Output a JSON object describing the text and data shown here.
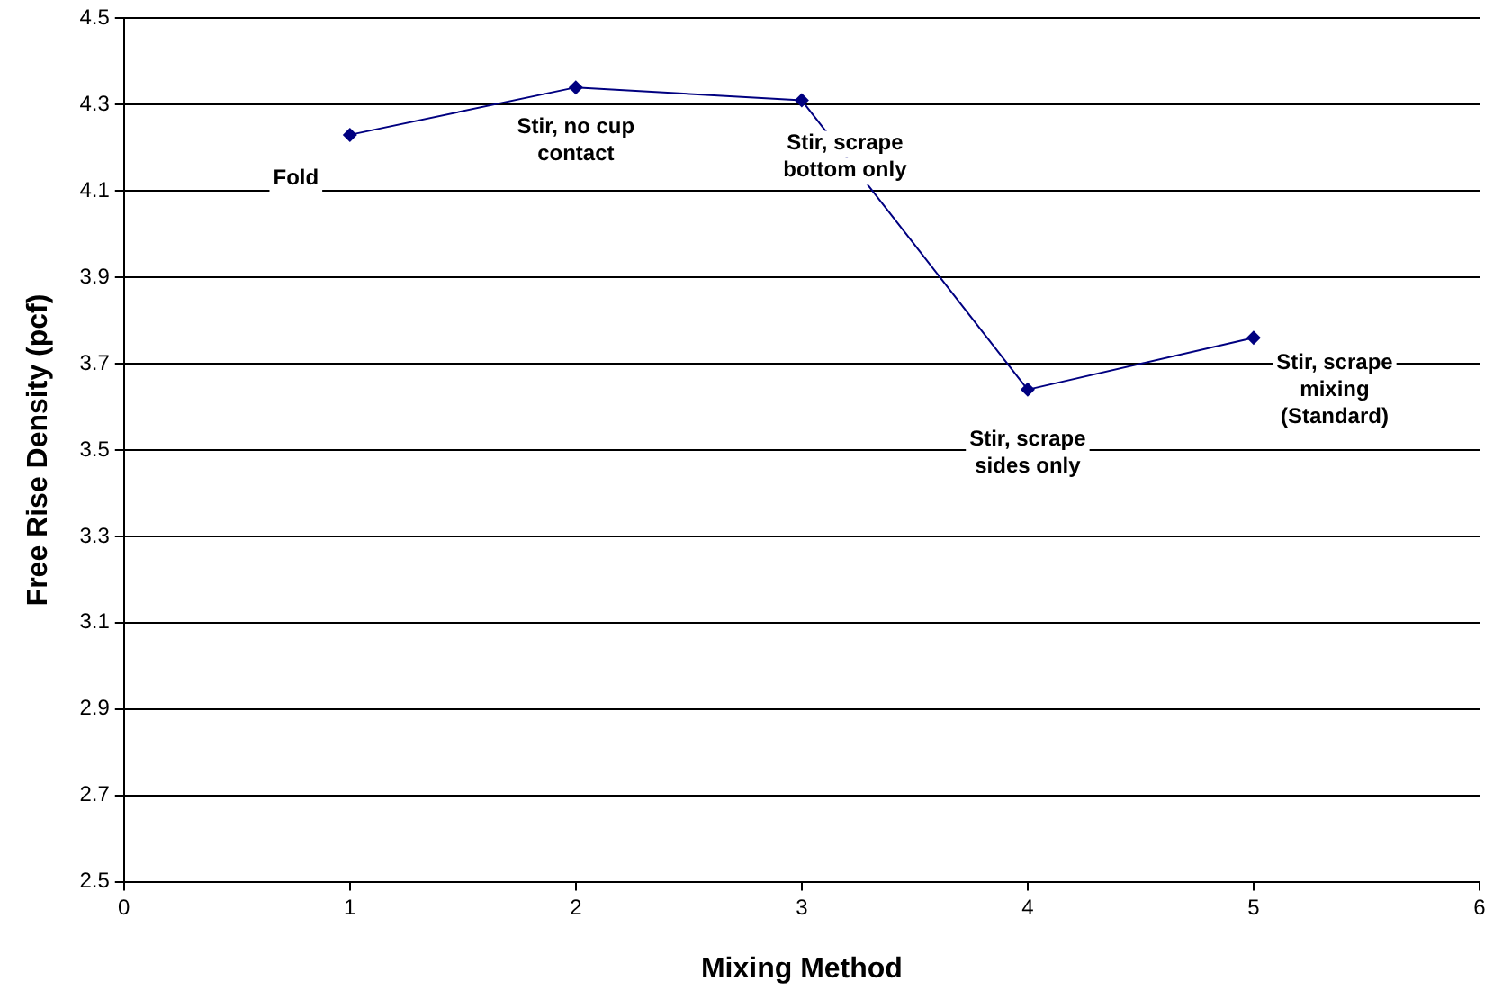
{
  "chart_data": {
    "type": "line",
    "xlabel": "Mixing Method",
    "ylabel": "Free Rise Density (pcf)",
    "x": [
      1,
      2,
      3,
      4,
      5
    ],
    "series": [
      {
        "color": "#000080",
        "values": [
          4.23,
          4.34,
          4.31,
          3.64,
          3.76
        ]
      }
    ],
    "xlim": [
      0,
      6
    ],
    "xticks": [
      0,
      1,
      2,
      3,
      4,
      5,
      6
    ],
    "ylim": [
      2.5,
      4.5
    ],
    "yticks": [
      2.5,
      2.7,
      2.9,
      3.1,
      3.3,
      3.5,
      3.7,
      3.9,
      4.1,
      4.3,
      4.5
    ],
    "grid": "y",
    "legend": false,
    "marker": "diamond",
    "line_style": "solid",
    "annotations": [
      {
        "text": "Fold",
        "x": 1,
        "y": 4.23
      },
      {
        "text": "Stir, no cup\ncontact",
        "x": 2,
        "y": 4.34
      },
      {
        "text": "Stir, scrape\nbottom only",
        "x": 3,
        "y": 4.31
      },
      {
        "text": "Stir, scrape\nsides only",
        "x": 4,
        "y": 3.64
      },
      {
        "text": "Stir, scrape\nmixing\n(Standard)",
        "x": 5,
        "y": 3.76
      }
    ]
  }
}
